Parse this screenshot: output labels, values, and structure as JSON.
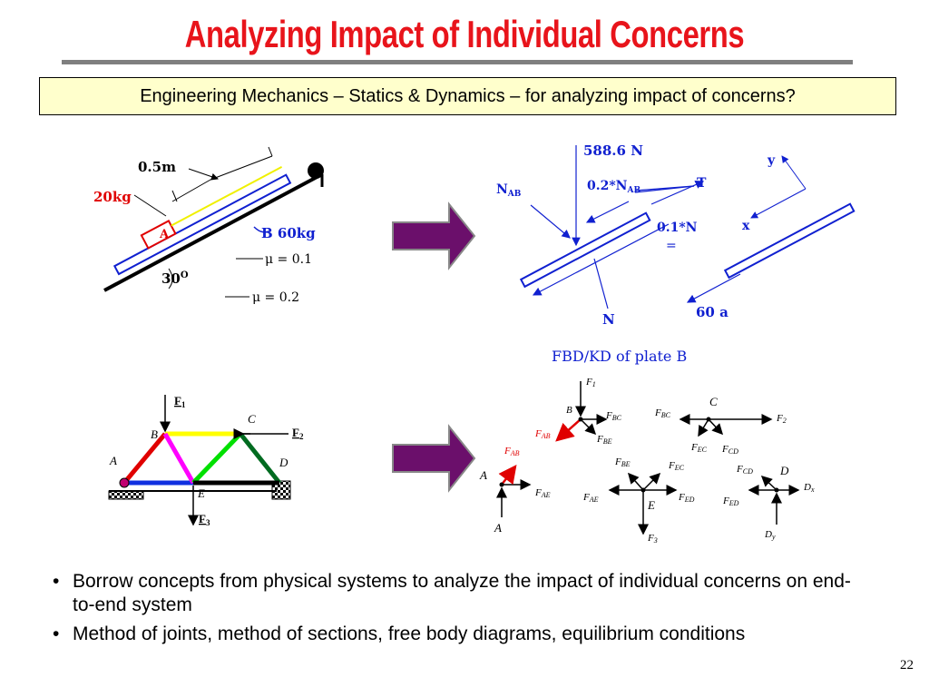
{
  "title": "Analyzing Impact of Individual Concerns",
  "subtitle": "Engineering Mechanics – Statics & Dynamics – for analyzing impact of concerns?",
  "incline": {
    "len_label": "0.5m",
    "mass_a": "20kg",
    "block_a": "A",
    "mass_b": "B 60kg",
    "mu_top": "μ = 0.1",
    "mu_bottom": "μ = 0.2",
    "angle": "30",
    "angle_sup": "O"
  },
  "fbd_plate": {
    "weight": "588.6 N",
    "nab": "N",
    "nab_sub": "AB",
    "friction_ab": "0.2*N",
    "friction_ab_sub": "AB",
    "tension": "T",
    "friction_n": "0.1*N",
    "eq": "=",
    "y": "y",
    "x": "x",
    "normal": "N",
    "ma": "60 a"
  },
  "truss": {
    "f1": "F",
    "f1_sub": "1",
    "f2": "F",
    "f2_sub": "2",
    "f3": "F",
    "f3_sub": "3",
    "a": "A",
    "b": "B",
    "c": "C",
    "d": "D",
    "e": "E"
  },
  "joints": {
    "heading": "FBD/KD of plate B",
    "f1": "F",
    "f1_sub": "1",
    "b": "B",
    "fbc": "F",
    "fbc_sub": "BC",
    "fab": "F",
    "fab_sub": "AB",
    "fbe": "F",
    "fbe_sub": "BE",
    "c": "C",
    "f2": "F",
    "f2_sub": "2",
    "fcd": "F",
    "fcd_sub": "CD",
    "fec": "F",
    "fec_sub": "EC",
    "fcd2": "F",
    "fcd2_sub": "CD",
    "d": "D",
    "dx": "D",
    "dx_sub": "x",
    "fed": "F",
    "fed_sub": "ED",
    "dy": "D",
    "dy_sub": "y",
    "a": "A",
    "fae": "F",
    "fae_sub": "AE",
    "a2": "A",
    "fbe2": "F",
    "fbe2_sub": "BE",
    "fec2": "F",
    "fec2_sub": "EC",
    "fae2": "F",
    "fae2_sub": "AE",
    "e": "E",
    "fed2": "F",
    "fed2_sub": "ED",
    "f3": "F",
    "f3_sub": "3",
    "fab2": "F",
    "fab2_sub": "AB"
  },
  "bullets": [
    "Borrow concepts from physical systems to analyze the impact of individual concerns on end-to-end system",
    "Method of joints, method of sections, free body diagrams, equilibrium conditions"
  ],
  "page_number": "22",
  "colors": {
    "title": "#e8141b",
    "box_fill": "#ffffcc",
    "arrow_fill": "#6b0f6b",
    "plate_blue": "#1020d0"
  }
}
